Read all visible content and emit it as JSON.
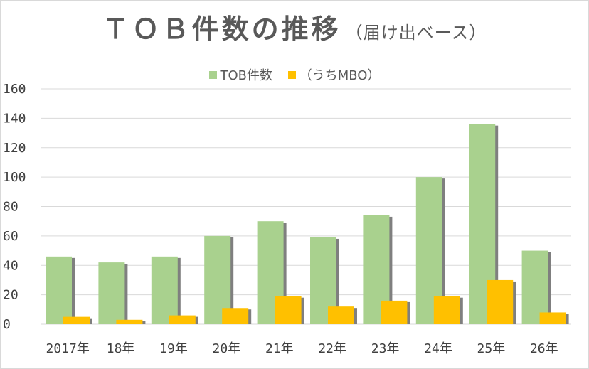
{
  "chart_data": {
    "type": "bar",
    "title": "ＴＯＢ件数の推移",
    "subtitle": "（届け出ベース）",
    "categories": [
      "2017年",
      "18年",
      "19年",
      "20年",
      "21年",
      "22年",
      "23年",
      "24年",
      "25年",
      "26年"
    ],
    "series": [
      {
        "name": "TOB件数",
        "values": [
          46,
          42,
          46,
          60,
          70,
          59,
          74,
          100,
          136,
          50
        ]
      },
      {
        "name": "（うちMBO）",
        "values": [
          5,
          3,
          6,
          11,
          19,
          12,
          16,
          19,
          30,
          8
        ]
      }
    ],
    "ylim": [
      0,
      160
    ],
    "yticks": [
      0,
      20,
      40,
      60,
      80,
      100,
      120,
      140,
      160
    ],
    "xlabel": "",
    "ylabel": "",
    "grid": true,
    "legend_position": "top",
    "colors": {
      "tob": "#a9d18e",
      "mbo": "#ffc000",
      "shadow": "#7f7f7f",
      "grid": "#d9d9d9",
      "text": "#595959"
    }
  }
}
